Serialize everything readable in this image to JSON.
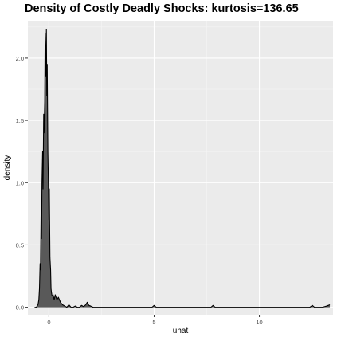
{
  "chart_data": {
    "type": "area",
    "title": "Density of Costly Deadly Shocks: kurtosis=136.65",
    "xlabel": "uhat",
    "ylabel": "density",
    "xlim": [
      -1.0,
      13.5
    ],
    "ylim": [
      -0.06,
      2.3
    ],
    "x_ticks": [
      0,
      5,
      10
    ],
    "x_tick_labels": [
      "0",
      "5",
      "10"
    ],
    "y_ticks": [
      0.0,
      0.5,
      1.0,
      1.5,
      2.0
    ],
    "y_tick_labels": [
      "0.0",
      "0.5",
      "1.0",
      "1.5",
      "2.0"
    ],
    "grid": true,
    "fill_color": "#595959",
    "line_color": "#000000",
    "panel_color": "#ebebeb",
    "series": [
      {
        "x": [
          -0.68,
          -0.6,
          -0.52,
          -0.48,
          -0.45,
          -0.42,
          -0.4,
          -0.37,
          -0.35,
          -0.33,
          -0.3,
          -0.28,
          -0.25,
          -0.23,
          -0.2,
          -0.18,
          -0.15,
          -0.12,
          -0.1,
          -0.08,
          -0.05,
          -0.03,
          0.0,
          0.02,
          0.05,
          0.08,
          0.1,
          0.12,
          0.15,
          0.2,
          0.25,
          0.3,
          0.38,
          0.45,
          0.55,
          0.65,
          0.75,
          0.85,
          0.95,
          1.05,
          1.15,
          1.25,
          1.35,
          1.45,
          1.55,
          1.65,
          1.75,
          1.82,
          1.9,
          1.98,
          2.1,
          2.5,
          3.0,
          4.0,
          4.9,
          5.0,
          5.1,
          6.0,
          7.0,
          7.7,
          7.8,
          7.9,
          9.0,
          11.0,
          12.4,
          12.52,
          12.62,
          13.0,
          13.2,
          13.35
        ],
        "y": [
          0.0,
          0.0,
          0.02,
          0.06,
          0.15,
          0.35,
          0.3,
          0.8,
          0.55,
          1.0,
          1.25,
          0.95,
          1.55,
          1.4,
          1.65,
          2.2,
          1.85,
          2.23,
          1.7,
          1.95,
          1.25,
          1.05,
          0.7,
          0.95,
          0.4,
          0.3,
          0.15,
          0.12,
          0.09,
          0.1,
          0.06,
          0.1,
          0.06,
          0.08,
          0.04,
          0.02,
          0.01,
          0.0,
          0.02,
          0.0,
          0.0,
          0.01,
          0.0,
          0.0,
          0.015,
          0.005,
          0.02,
          0.04,
          0.015,
          0.01,
          0.0,
          0.0,
          0.0,
          0.0,
          0.0,
          0.015,
          0.0,
          0.0,
          0.0,
          0.0,
          0.015,
          0.0,
          0.0,
          0.0,
          0.0,
          0.015,
          0.0,
          0.0,
          0.01,
          0.02
        ]
      }
    ]
  }
}
